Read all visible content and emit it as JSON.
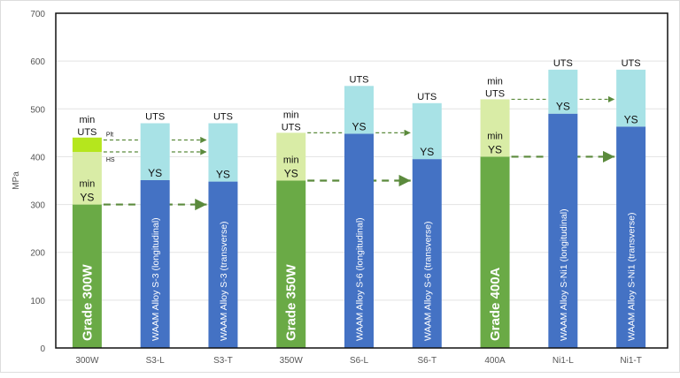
{
  "chart_data": {
    "type": "bar",
    "ylabel": "MPa",
    "ylim": [
      0,
      700
    ],
    "yticks": [
      0,
      100,
      200,
      300,
      400,
      500,
      600,
      700
    ],
    "grid": true,
    "categories": [
      "300W",
      "S3-L",
      "S3-T",
      "350W",
      "S6-L",
      "S6-T",
      "400A",
      "Ni1-L",
      "Ni1-T"
    ],
    "bar_labels": [
      "Grade 300W",
      "WAAM Alloy S-3 (longitudinal)",
      "WAAM Alloy S-3 (transverse)",
      "Grade 350W",
      "WAAM Alloy S-6 (longitudinal)",
      "WAAM Alloy S-6 (transverse)",
      "Grade 400A",
      "WAAM Alloy S-Ni1 (longitudinal)",
      "WAAM Alloy S-Ni1 (transverse)"
    ],
    "kind": [
      "grade",
      "waam",
      "waam",
      "grade",
      "waam",
      "waam",
      "grade",
      "waam",
      "waam"
    ],
    "ys": [
      300,
      351,
      348,
      350,
      448,
      395,
      400,
      490,
      463
    ],
    "uts": [
      440,
      470,
      470,
      450,
      548,
      512,
      520,
      582,
      582
    ],
    "uts_hs_300W": 410,
    "labels": {
      "ys": "YS",
      "uts": "UTS",
      "min_ys": [
        "min",
        "YS"
      ],
      "min_uts": [
        "min",
        "UTS"
      ],
      "plt": "Plt",
      "hs": "HS"
    },
    "colors": {
      "grade_ys": "#6aaa46",
      "grade_uts": "#d9eca6",
      "grade_plt": "#b5e61d",
      "waam_ys": "#4472c4",
      "waam_uts": "#a8e2e6",
      "arrow": "#5b8a3c"
    }
  }
}
